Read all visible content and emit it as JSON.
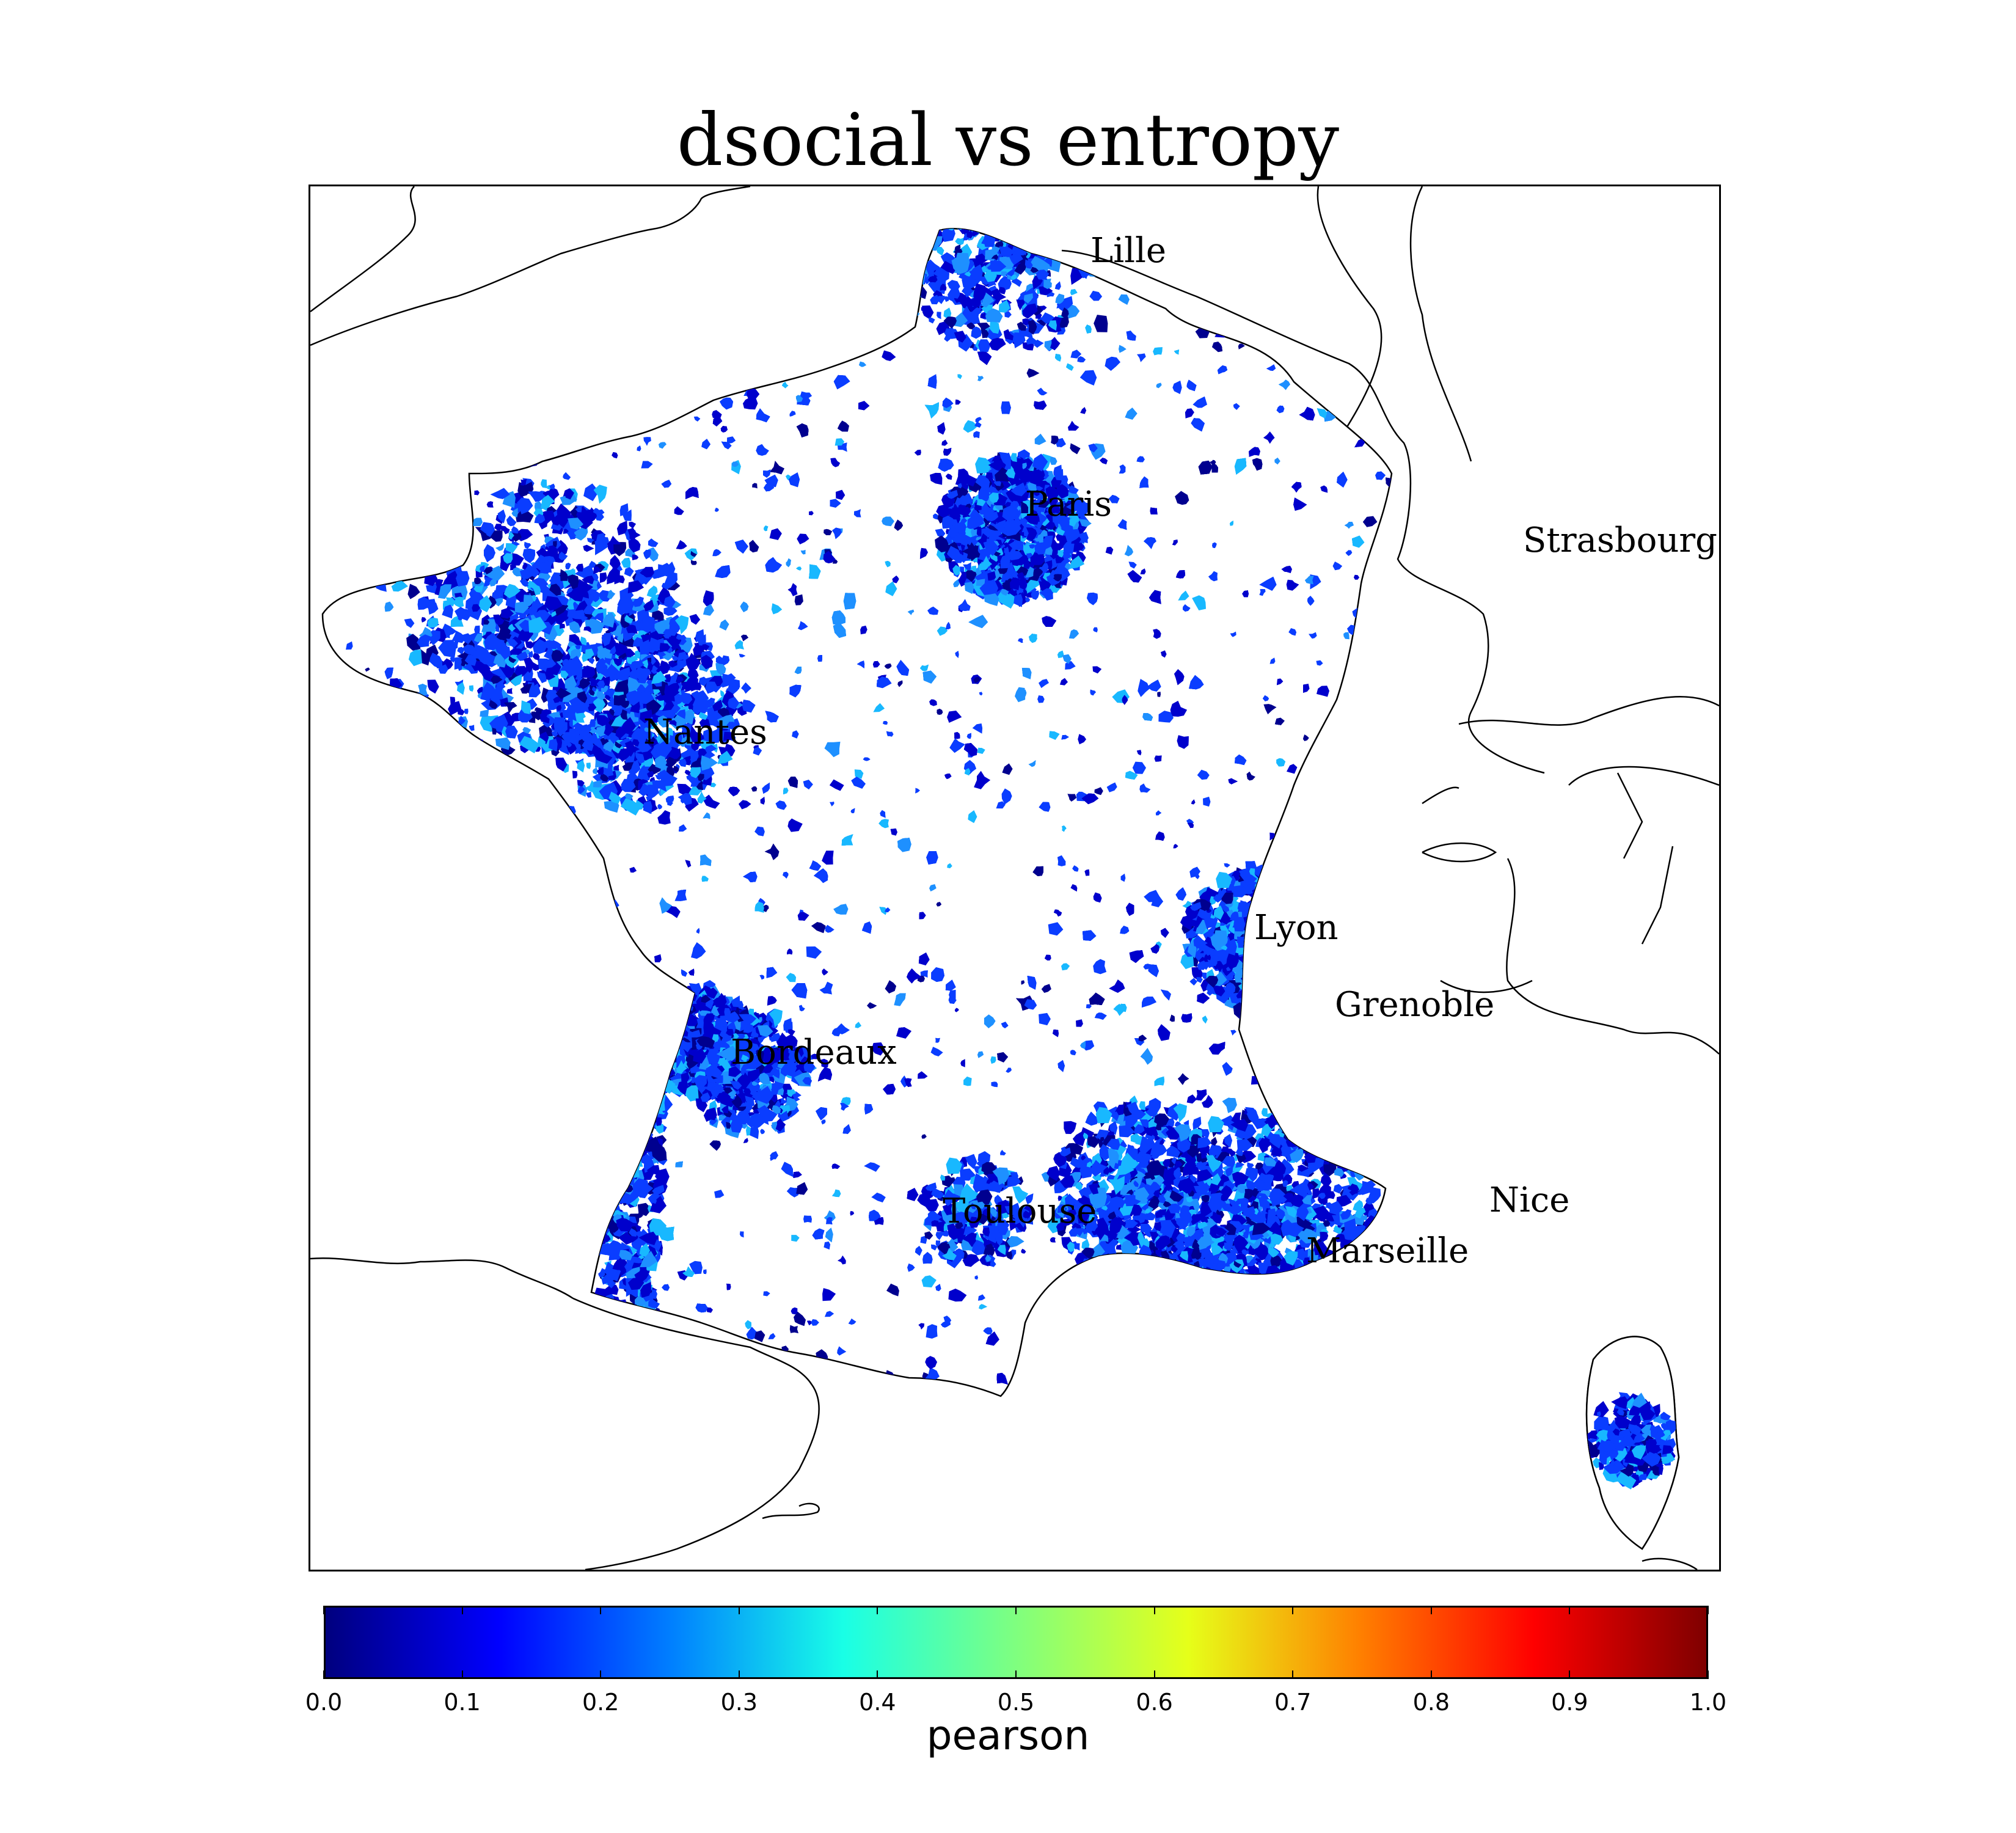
{
  "title": "dsocial vs entropy",
  "map": {
    "region": "France",
    "cities": [
      {
        "name": "Lille"
      },
      {
        "name": "Paris"
      },
      {
        "name": "Strasbourg"
      },
      {
        "name": "Nantes"
      },
      {
        "name": "Lyon"
      },
      {
        "name": "Grenoble"
      },
      {
        "name": "Bordeaux"
      },
      {
        "name": "Toulouse"
      },
      {
        "name": "Nice"
      },
      {
        "name": "Marseille"
      }
    ],
    "fill_colors": {
      "low": "#0000cc",
      "mid": "#0a3dff",
      "light": "#1e90ff",
      "cyan": "#18b8ff",
      "dark": "#00008f",
      "coast": "#000000"
    }
  },
  "colorbar": {
    "label": "pearson",
    "ticks": [
      "0.0",
      "0.1",
      "0.2",
      "0.3",
      "0.4",
      "0.5",
      "0.6",
      "0.7",
      "0.8",
      "0.9",
      "1.0"
    ],
    "min": 0.0,
    "max": 1.0,
    "colormap": "jet",
    "stops": [
      "#00007f",
      "#0000ff",
      "#007fff",
      "#19ffe6",
      "#7fff7f",
      "#e6ff19",
      "#ff7f00",
      "#ff0000",
      "#7f0000"
    ]
  }
}
